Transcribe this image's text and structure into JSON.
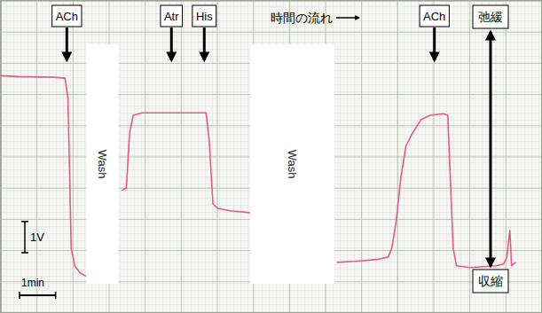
{
  "chart_data": {
    "type": "line",
    "xlabel": "時間の流れ",
    "x": [
      0,
      0.49,
      1.47,
      1.79,
      1.87,
      1.92,
      1.96,
      2.06,
      2.21,
      2.38,
      2.9,
      3.36,
      3.49,
      3.58,
      3.68,
      3.93,
      4.91,
      5.7,
      5.79,
      5.89,
      6.02,
      6.38,
      6.92,
      8.1,
      9.33,
      9.82,
      10.43,
      10.75,
      10.85,
      10.97,
      11.1,
      11.24,
      11.42,
      11.66,
      11.91,
      12.28,
      12.4,
      12.47,
      12.55,
      12.64,
      13.01,
      13.75,
      13.95,
      14.04,
      14.12,
      14.17,
      14.29
    ],
    "values": [
      7.59,
      7.56,
      7.54,
      7.51,
      6.88,
      4.33,
      2.07,
      1.5,
      1.27,
      1.16,
      null,
      3.91,
      3.99,
      5.75,
      6.32,
      6.4,
      6.4,
      6.4,
      5.47,
      3.48,
      3.34,
      3.26,
      3.2,
      null,
      1.61,
      1.64,
      1.7,
      1.78,
      2.07,
      2.92,
      4.33,
      5.33,
      5.75,
      6.18,
      6.32,
      6.37,
      6.32,
      4.33,
      2.07,
      1.5,
      1.44,
      1.5,
      1.56,
      1.78,
      2.63,
      1.5,
      1.61
    ],
    "color": "#e35d8c",
    "xlim": [
      0,
      15
    ],
    "ylim": [
      0,
      10
    ],
    "xticks": [
      0,
      1,
      2,
      3,
      4,
      5,
      6,
      7,
      8,
      9,
      10,
      11,
      12,
      13,
      14,
      15
    ],
    "yticks": [
      0,
      1,
      2,
      3,
      4,
      5,
      6,
      7,
      8,
      9,
      10
    ],
    "grid": true,
    "tick_labels": false,
    "annotations": [
      {
        "text": "ACh",
        "x": 1.84
      },
      {
        "text": "Atr",
        "x": 4.74
      },
      {
        "text": "His",
        "x": 5.65
      },
      {
        "text": "ACh",
        "x": 12.03
      }
    ],
    "wash": [
      {
        "text": "Wash",
        "from": 2.38,
        "to": 3.27
      },
      {
        "text": "Wash",
        "from": 6.92,
        "to": 9.26
      }
    ],
    "scale_bar_y": {
      "text": "1V",
      "value": 1
    },
    "scale_bar_x": {
      "text": "1min",
      "value": 1
    },
    "direction": {
      "top": "弛緩",
      "bottom": "収縮"
    }
  }
}
